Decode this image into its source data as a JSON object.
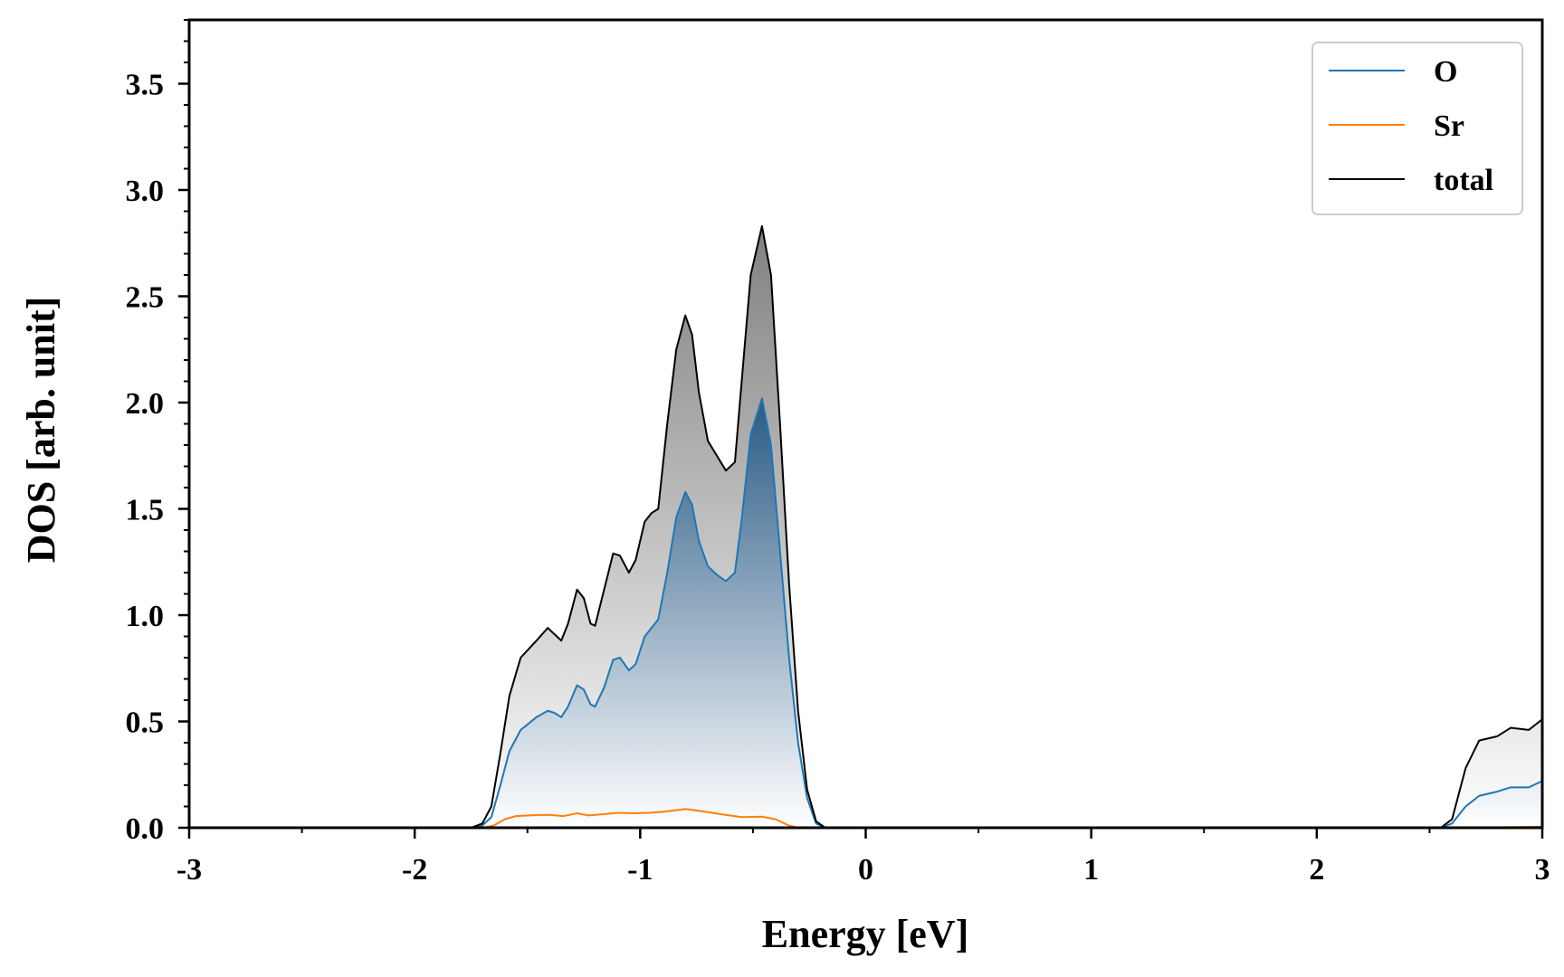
{
  "chart_data": {
    "type": "area",
    "xlabel": "Energy [eV]",
    "ylabel": "DOS [arb. unit]",
    "xlim": [
      -3,
      3
    ],
    "ylim": [
      0,
      3.8
    ],
    "x_ticks": [
      -3,
      -2,
      -1,
      0,
      1,
      2,
      3
    ],
    "x_tick_labels": [
      "-3",
      "-2",
      "-1",
      "0",
      "1",
      "2",
      "3"
    ],
    "y_ticks": [
      0,
      0.5,
      1.0,
      1.5,
      2.0,
      2.5,
      3.0,
      3.5
    ],
    "y_tick_labels": [
      "0.0",
      "0.5",
      "1.0",
      "1.5",
      "2.0",
      "2.5",
      "3.0",
      "3.5"
    ],
    "grid": false,
    "legend_position": "top-right",
    "series": [
      {
        "name": "O",
        "color": "#1f77b4",
        "fill": "gradient-blue",
        "points": [
          [
            -3.0,
            0
          ],
          [
            -1.75,
            0
          ],
          [
            -1.7,
            0.01
          ],
          [
            -1.66,
            0.05
          ],
          [
            -1.62,
            0.2
          ],
          [
            -1.58,
            0.36
          ],
          [
            -1.53,
            0.46
          ],
          [
            -1.46,
            0.52
          ],
          [
            -1.41,
            0.55
          ],
          [
            -1.38,
            0.54
          ],
          [
            -1.35,
            0.52
          ],
          [
            -1.32,
            0.57
          ],
          [
            -1.28,
            0.67
          ],
          [
            -1.25,
            0.65
          ],
          [
            -1.22,
            0.58
          ],
          [
            -1.2,
            0.57
          ],
          [
            -1.16,
            0.66
          ],
          [
            -1.12,
            0.79
          ],
          [
            -1.09,
            0.8
          ],
          [
            -1.05,
            0.74
          ],
          [
            -1.02,
            0.77
          ],
          [
            -0.98,
            0.9
          ],
          [
            -0.95,
            0.94
          ],
          [
            -0.92,
            0.98
          ],
          [
            -0.88,
            1.2
          ],
          [
            -0.84,
            1.46
          ],
          [
            -0.8,
            1.58
          ],
          [
            -0.77,
            1.52
          ],
          [
            -0.74,
            1.35
          ],
          [
            -0.7,
            1.23
          ],
          [
            -0.66,
            1.19
          ],
          [
            -0.62,
            1.16
          ],
          [
            -0.58,
            1.2
          ],
          [
            -0.55,
            1.45
          ],
          [
            -0.51,
            1.85
          ],
          [
            -0.46,
            2.02
          ],
          [
            -0.42,
            1.8
          ],
          [
            -0.38,
            1.3
          ],
          [
            -0.34,
            0.8
          ],
          [
            -0.3,
            0.4
          ],
          [
            -0.26,
            0.14
          ],
          [
            -0.22,
            0.02
          ],
          [
            -0.18,
            0
          ],
          [
            2.55,
            0
          ],
          [
            2.6,
            0.02
          ],
          [
            2.66,
            0.1
          ],
          [
            2.72,
            0.15
          ],
          [
            2.8,
            0.17
          ],
          [
            2.86,
            0.19
          ],
          [
            2.94,
            0.19
          ],
          [
            3.0,
            0.22
          ]
        ]
      },
      {
        "name": "Sr",
        "color": "#ff7f0e",
        "points": [
          [
            -3.0,
            0
          ],
          [
            -1.7,
            0
          ],
          [
            -1.65,
            0.01
          ],
          [
            -1.6,
            0.04
          ],
          [
            -1.55,
            0.055
          ],
          [
            -1.45,
            0.06
          ],
          [
            -1.4,
            0.06
          ],
          [
            -1.34,
            0.055
          ],
          [
            -1.28,
            0.068
          ],
          [
            -1.23,
            0.058
          ],
          [
            -1.18,
            0.062
          ],
          [
            -1.1,
            0.07
          ],
          [
            -1.03,
            0.068
          ],
          [
            -0.96,
            0.07
          ],
          [
            -0.9,
            0.075
          ],
          [
            -0.8,
            0.088
          ],
          [
            -0.74,
            0.08
          ],
          [
            -0.65,
            0.065
          ],
          [
            -0.55,
            0.05
          ],
          [
            -0.46,
            0.052
          ],
          [
            -0.4,
            0.04
          ],
          [
            -0.34,
            0.01
          ],
          [
            -0.3,
            0
          ],
          [
            2.6,
            0
          ],
          [
            3.0,
            0.005
          ]
        ]
      },
      {
        "name": "total",
        "color": "#000000",
        "fill": "gradient-gray",
        "points": [
          [
            -3.0,
            0
          ],
          [
            -1.75,
            0
          ],
          [
            -1.7,
            0.02
          ],
          [
            -1.66,
            0.1
          ],
          [
            -1.62,
            0.35
          ],
          [
            -1.58,
            0.62
          ],
          [
            -1.53,
            0.8
          ],
          [
            -1.46,
            0.88
          ],
          [
            -1.41,
            0.94
          ],
          [
            -1.38,
            0.91
          ],
          [
            -1.35,
            0.88
          ],
          [
            -1.32,
            0.96
          ],
          [
            -1.28,
            1.12
          ],
          [
            -1.25,
            1.08
          ],
          [
            -1.22,
            0.96
          ],
          [
            -1.2,
            0.95
          ],
          [
            -1.16,
            1.12
          ],
          [
            -1.12,
            1.29
          ],
          [
            -1.09,
            1.28
          ],
          [
            -1.05,
            1.2
          ],
          [
            -1.02,
            1.26
          ],
          [
            -0.98,
            1.44
          ],
          [
            -0.95,
            1.48
          ],
          [
            -0.92,
            1.5
          ],
          [
            -0.88,
            1.9
          ],
          [
            -0.84,
            2.25
          ],
          [
            -0.8,
            2.41
          ],
          [
            -0.77,
            2.32
          ],
          [
            -0.74,
            2.05
          ],
          [
            -0.7,
            1.82
          ],
          [
            -0.66,
            1.75
          ],
          [
            -0.62,
            1.68
          ],
          [
            -0.58,
            1.72
          ],
          [
            -0.55,
            2.1
          ],
          [
            -0.51,
            2.6
          ],
          [
            -0.46,
            2.83
          ],
          [
            -0.42,
            2.6
          ],
          [
            -0.38,
            1.9
          ],
          [
            -0.34,
            1.15
          ],
          [
            -0.3,
            0.55
          ],
          [
            -0.26,
            0.18
          ],
          [
            -0.22,
            0.03
          ],
          [
            -0.18,
            0
          ],
          [
            2.55,
            0
          ],
          [
            2.6,
            0.04
          ],
          [
            2.66,
            0.28
          ],
          [
            2.72,
            0.41
          ],
          [
            2.8,
            0.43
          ],
          [
            2.86,
            0.47
          ],
          [
            2.94,
            0.46
          ],
          [
            3.0,
            0.51
          ]
        ]
      }
    ]
  }
}
